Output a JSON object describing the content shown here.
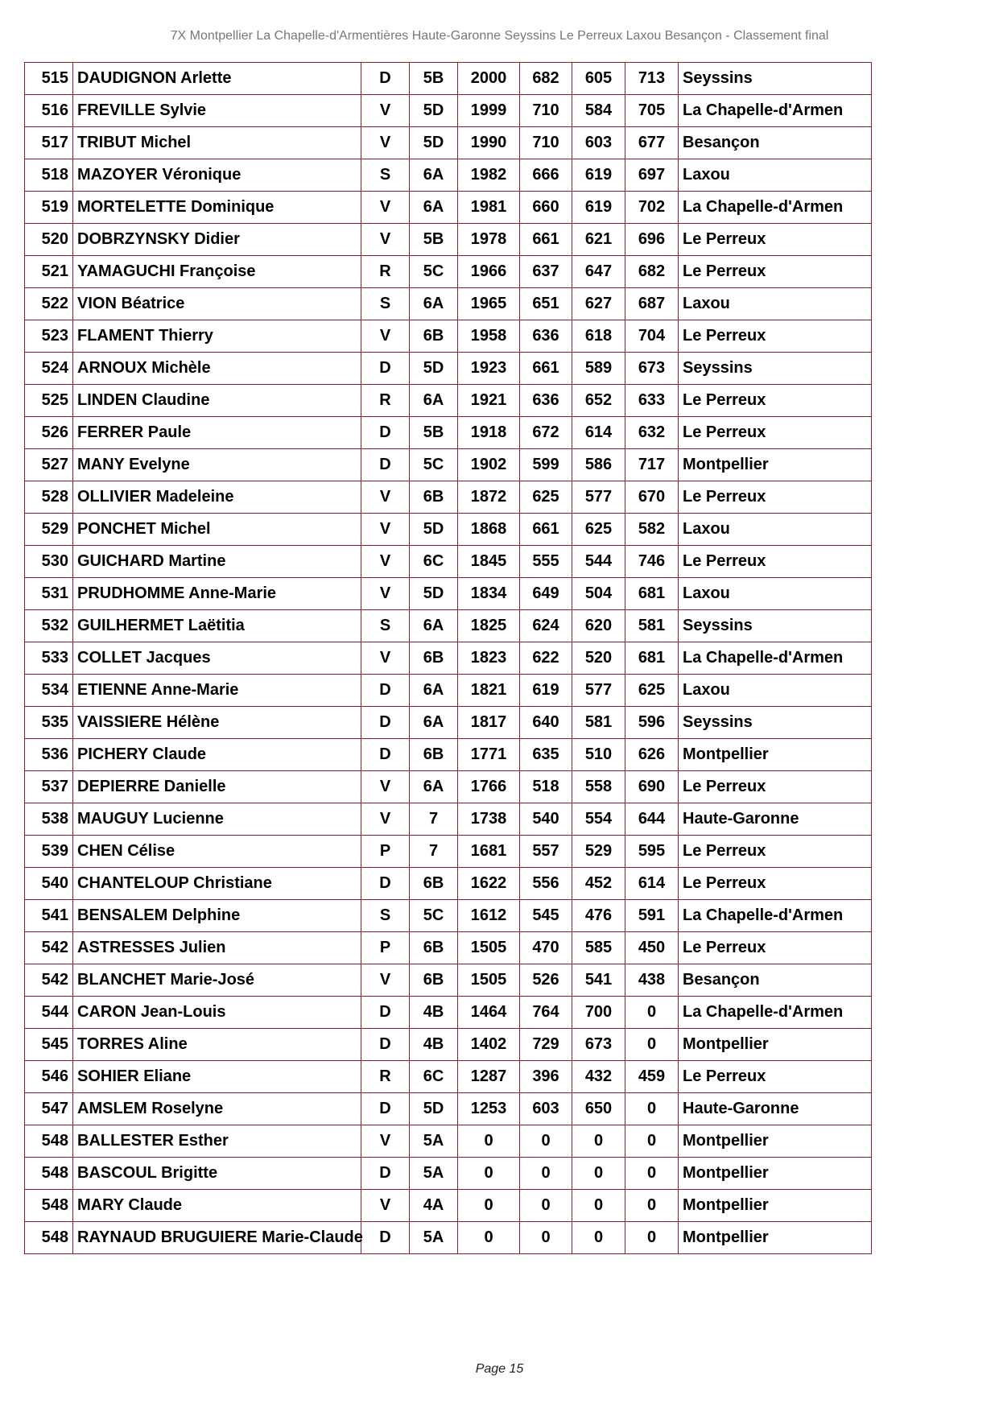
{
  "header": {
    "title": "7X Montpellier La Chapelle-d'Armentières Haute-Garonne Seyssins Le Perreux Laxou Besançon - Classement final"
  },
  "footer": {
    "page": "Page 15"
  },
  "rows": [
    [
      "515",
      "DAUDIGNON Arlette",
      "D",
      "5B",
      "2000",
      "682",
      "605",
      "713",
      "Seyssins"
    ],
    [
      "516",
      "FREVILLE Sylvie",
      "V",
      "5D",
      "1999",
      "710",
      "584",
      "705",
      "La Chapelle-d'Armen"
    ],
    [
      "517",
      "TRIBUT Michel",
      "V",
      "5D",
      "1990",
      "710",
      "603",
      "677",
      "Besançon"
    ],
    [
      "518",
      "MAZOYER Véronique",
      "S",
      "6A",
      "1982",
      "666",
      "619",
      "697",
      "Laxou"
    ],
    [
      "519",
      "MORTELETTE Dominique",
      "V",
      "6A",
      "1981",
      "660",
      "619",
      "702",
      "La Chapelle-d'Armen"
    ],
    [
      "520",
      "DOBRZYNSKY Didier",
      "V",
      "5B",
      "1978",
      "661",
      "621",
      "696",
      "Le Perreux"
    ],
    [
      "521",
      "YAMAGUCHI Françoise",
      "R",
      "5C",
      "1966",
      "637",
      "647",
      "682",
      "Le Perreux"
    ],
    [
      "522",
      "VION Béatrice",
      "S",
      "6A",
      "1965",
      "651",
      "627",
      "687",
      "Laxou"
    ],
    [
      "523",
      "FLAMENT Thierry",
      "V",
      "6B",
      "1958",
      "636",
      "618",
      "704",
      "Le Perreux"
    ],
    [
      "524",
      "ARNOUX Michèle",
      "D",
      "5D",
      "1923",
      "661",
      "589",
      "673",
      "Seyssins"
    ],
    [
      "525",
      "LINDEN Claudine",
      "R",
      "6A",
      "1921",
      "636",
      "652",
      "633",
      "Le Perreux"
    ],
    [
      "526",
      "FERRER Paule",
      "D",
      "5B",
      "1918",
      "672",
      "614",
      "632",
      "Le Perreux"
    ],
    [
      "527",
      "MANY Evelyne",
      "D",
      "5C",
      "1902",
      "599",
      "586",
      "717",
      "Montpellier"
    ],
    [
      "528",
      "OLLIVIER Madeleine",
      "V",
      "6B",
      "1872",
      "625",
      "577",
      "670",
      "Le Perreux"
    ],
    [
      "529",
      "PONCHET Michel",
      "V",
      "5D",
      "1868",
      "661",
      "625",
      "582",
      "Laxou"
    ],
    [
      "530",
      "GUICHARD Martine",
      "V",
      "6C",
      "1845",
      "555",
      "544",
      "746",
      "Le Perreux"
    ],
    [
      "531",
      "PRUDHOMME Anne-Marie",
      "V",
      "5D",
      "1834",
      "649",
      "504",
      "681",
      "Laxou"
    ],
    [
      "532",
      "GUILHERMET Laëtitia",
      "S",
      "6A",
      "1825",
      "624",
      "620",
      "581",
      "Seyssins"
    ],
    [
      "533",
      "COLLET Jacques",
      "V",
      "6B",
      "1823",
      "622",
      "520",
      "681",
      "La Chapelle-d'Armen"
    ],
    [
      "534",
      "ETIENNE Anne-Marie",
      "D",
      "6A",
      "1821",
      "619",
      "577",
      "625",
      "Laxou"
    ],
    [
      "535",
      "VAISSIERE Hélène",
      "D",
      "6A",
      "1817",
      "640",
      "581",
      "596",
      "Seyssins"
    ],
    [
      "536",
      "PICHERY Claude",
      "D",
      "6B",
      "1771",
      "635",
      "510",
      "626",
      "Montpellier"
    ],
    [
      "537",
      "DEPIERRE Danielle",
      "V",
      "6A",
      "1766",
      "518",
      "558",
      "690",
      "Le Perreux"
    ],
    [
      "538",
      "MAUGUY Lucienne",
      "V",
      "7",
      "1738",
      "540",
      "554",
      "644",
      "Haute-Garonne"
    ],
    [
      "539",
      "CHEN Célise",
      "P",
      "7",
      "1681",
      "557",
      "529",
      "595",
      "Le Perreux"
    ],
    [
      "540",
      "CHANTELOUP Christiane",
      "D",
      "6B",
      "1622",
      "556",
      "452",
      "614",
      "Le Perreux"
    ],
    [
      "541",
      "BENSALEM Delphine",
      "S",
      "5C",
      "1612",
      "545",
      "476",
      "591",
      "La Chapelle-d'Armen"
    ],
    [
      "542",
      "ASTRESSES Julien",
      "P",
      "6B",
      "1505",
      "470",
      "585",
      "450",
      "Le Perreux"
    ],
    [
      "542",
      "BLANCHET Marie-José",
      "V",
      "6B",
      "1505",
      "526",
      "541",
      "438",
      "Besançon"
    ],
    [
      "544",
      "CARON Jean-Louis",
      "D",
      "4B",
      "1464",
      "764",
      "700",
      "0",
      "La Chapelle-d'Armen"
    ],
    [
      "545",
      "TORRES Aline",
      "D",
      "4B",
      "1402",
      "729",
      "673",
      "0",
      "Montpellier"
    ],
    [
      "546",
      "SOHIER Eliane",
      "R",
      "6C",
      "1287",
      "396",
      "432",
      "459",
      "Le Perreux"
    ],
    [
      "547",
      "AMSLEM Roselyne",
      "D",
      "5D",
      "1253",
      "603",
      "650",
      "0",
      "Haute-Garonne"
    ],
    [
      "548",
      "BALLESTER Esther",
      "V",
      "5A",
      "0",
      "0",
      "0",
      "0",
      "Montpellier"
    ],
    [
      "548",
      "BASCOUL Brigitte",
      "D",
      "5A",
      "0",
      "0",
      "0",
      "0",
      "Montpellier"
    ],
    [
      "548",
      "MARY Claude",
      "V",
      "4A",
      "0",
      "0",
      "0",
      "0",
      "Montpellier"
    ],
    [
      "548",
      "RAYNAUD BRUGUIERE Marie-Claude",
      "D",
      "5A",
      "0",
      "0",
      "0",
      "0",
      "Montpellier"
    ]
  ]
}
